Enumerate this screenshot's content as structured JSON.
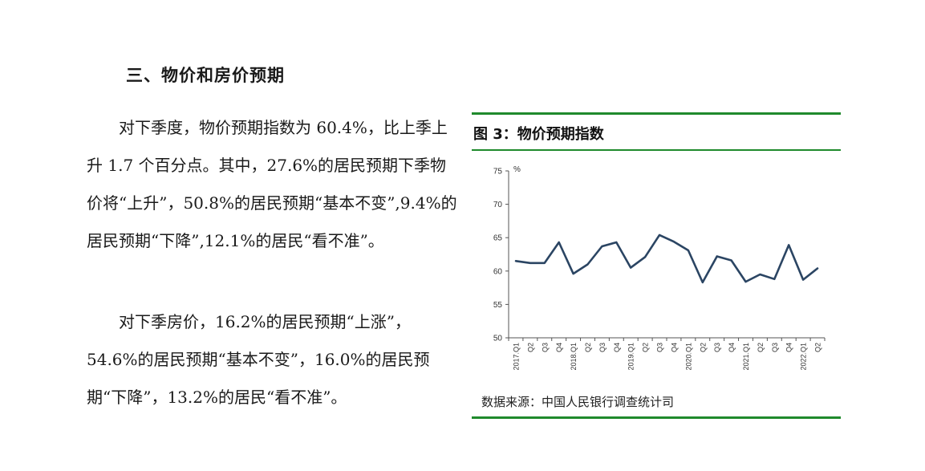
{
  "heading": "三、物价和房价预期",
  "paragraphs": [
    "对下季度，物价预期指数为 60.4%，比上季上升 1.7 个百分点。其中，27.6%的居民预期下季物价将“上升”，50.8%的居民预期“基本不变”,9.4%的居民预期“下降”,12.1%的居民“看不准”。",
    "对下季房价，16.2%的居民预期“上涨”，54.6%的居民预期“基本不变”，16.0%的居民预期“下降”，13.2%的居民“看不准”。"
  ],
  "figure": {
    "title": "图 3：物价预期指数",
    "source": "数据来源：中国人民银行调查统计司"
  },
  "colors": {
    "accent_rule": "#1f8a2c",
    "line": "#2b4563"
  },
  "chart_data": {
    "type": "line",
    "title": "图 3：物价预期指数",
    "ylabel": "%",
    "ylim": [
      50,
      75
    ],
    "yticks": [
      50,
      55,
      60,
      65,
      70,
      75
    ],
    "grid": false,
    "categories": [
      "2017.Q1",
      "Q2",
      "Q3",
      "Q4",
      "2018.Q1",
      "Q2",
      "Q3",
      "Q4",
      "2019.Q1",
      "Q2",
      "Q3",
      "Q4",
      "2020.Q1",
      "Q2",
      "Q3",
      "Q4",
      "2021.Q1",
      "Q2",
      "Q3",
      "Q4",
      "2022.Q1",
      "Q2"
    ],
    "series": [
      {
        "values": [
          61.5,
          61.2,
          61.2,
          64.3,
          59.6,
          61.0,
          63.7,
          64.3,
          60.5,
          62.1,
          65.4,
          64.4,
          63.1,
          58.3,
          62.2,
          61.6,
          58.4,
          59.5,
          58.8,
          63.9,
          58.7,
          60.4
        ]
      }
    ]
  }
}
